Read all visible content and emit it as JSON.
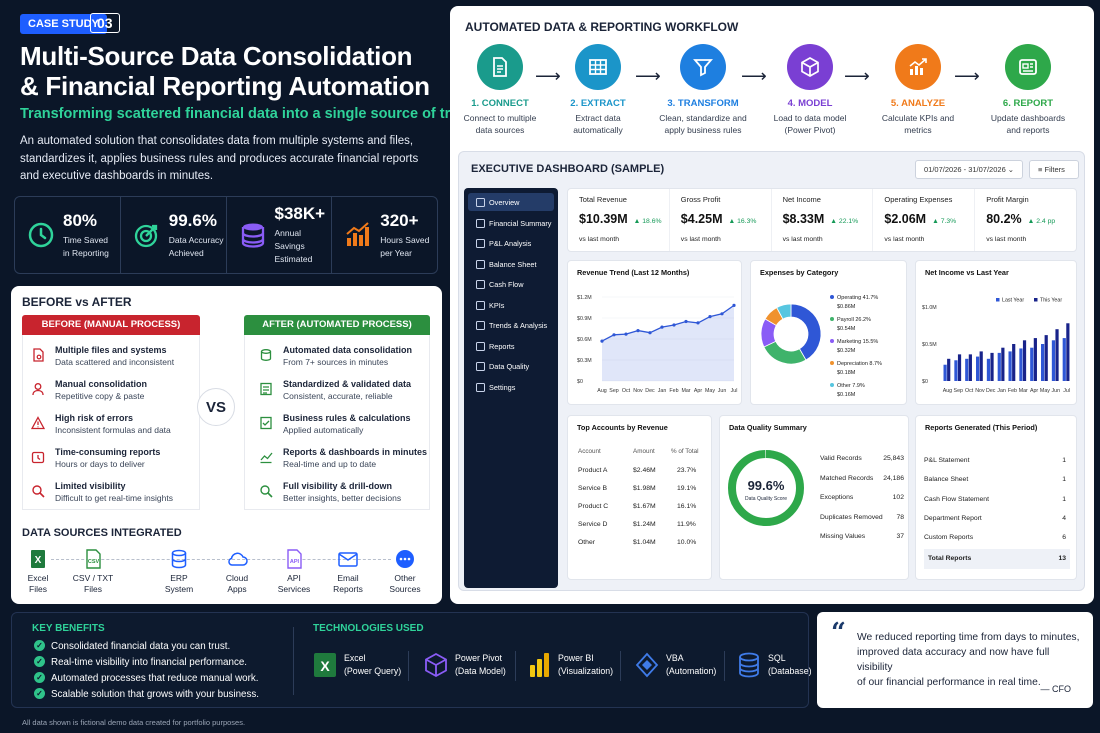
{
  "header": {
    "badge": "CASE STUDY",
    "number": "03",
    "title_line1": "Multi-Source Data Consolidation",
    "title_line2": "& Financial Reporting Automation",
    "subtitle": "Transforming scattered financial data into a single source of truth",
    "desc_line1": "An automated solution that consolidates data from multiple systems and files,",
    "desc_line2": "standardizes it, applies business rules and produces accurate financial reports",
    "desc_line3": "and executive dashboards in minutes."
  },
  "stats": [
    {
      "value": "80%",
      "l1": "Time Saved",
      "l2": "in Reporting",
      "icon": "clock-icon",
      "color": "#2fd39a"
    },
    {
      "value": "99.6%",
      "l1": "Data Accuracy",
      "l2": "Achieved",
      "icon": "target-icon",
      "color": "#2fd39a"
    },
    {
      "value": "$38K+",
      "l1": "Annual Savings",
      "l2": "Estimated",
      "icon": "database-icon",
      "color": "#8a5cf6"
    },
    {
      "value": "320+",
      "l1": "Hours Saved",
      "l2": "per Year",
      "icon": "bar-chart-icon",
      "color": "#f07a1a"
    }
  ],
  "before_after": {
    "heading": "BEFORE vs AFTER",
    "before_label": "BEFORE (MANUAL PROCESS)",
    "after_label": "AFTER (AUTOMATED PROCESS)",
    "vs": "VS",
    "before": [
      {
        "t": "Multiple files and systems",
        "s": "Data scattered and inconsistent"
      },
      {
        "t": "Manual consolidation",
        "s": "Repetitive copy & paste"
      },
      {
        "t": "High risk of errors",
        "s": "Inconsistent formulas and data"
      },
      {
        "t": "Time-consuming reports",
        "s": "Hours or days to deliver"
      },
      {
        "t": "Limited visibility",
        "s": "Difficult to get real-time insights"
      }
    ],
    "after": [
      {
        "t": "Automated data consolidation",
        "s": "From 7+ sources in minutes"
      },
      {
        "t": "Standardized & validated data",
        "s": "Consistent, accurate, reliable"
      },
      {
        "t": "Business rules & calculations",
        "s": "Applied automatically"
      },
      {
        "t": "Reports & dashboards in minutes",
        "s": "Real-time and up to date"
      },
      {
        "t": "Full visibility & drill-down",
        "s": "Better insights, better decisions"
      }
    ],
    "sources_heading": "DATA SOURCES INTEGRATED",
    "sources": [
      {
        "l1": "Excel",
        "l2": "Files"
      },
      {
        "l1": "CSV / TXT",
        "l2": "Files"
      },
      {
        "l1": "ERP",
        "l2": "System"
      },
      {
        "l1": "Cloud",
        "l2": "Apps"
      },
      {
        "l1": "API",
        "l2": "Services"
      },
      {
        "l1": "Email",
        "l2": "Reports"
      },
      {
        "l1": "Other",
        "l2": "Sources"
      }
    ]
  },
  "workflow": {
    "heading": "AUTOMATED DATA & REPORTING WORKFLOW",
    "steps": [
      {
        "n": "1. CONNECT",
        "d1": "Connect to multiple",
        "d2": "data sources",
        "color": "#1a9b8c"
      },
      {
        "n": "2. EXTRACT",
        "d1": "Extract data",
        "d2": "automatically",
        "color": "#1b95c9"
      },
      {
        "n": "3. TRANSFORM",
        "d1": "Clean, standardize and",
        "d2": "apply business rules",
        "color": "#1e7fe0"
      },
      {
        "n": "4. MODEL",
        "d1": "Load to data model",
        "d2": "(Power Pivot)",
        "color": "#7a3fd3"
      },
      {
        "n": "5. ANALYZE",
        "d1": "Calculate KPIs and",
        "d2": "metrics",
        "color": "#f07a1a"
      },
      {
        "n": "6. REPORT",
        "d1": "Update dashboards",
        "d2": "and reports",
        "color": "#2ea84a"
      }
    ]
  },
  "dashboard": {
    "title": "EXECUTIVE DASHBOARD (SAMPLE)",
    "date_range": "01/07/2026 - 31/07/2026",
    "filters": "Filters",
    "nav": [
      "Overview",
      "Financial Summary",
      "P&L Analysis",
      "Balance Sheet",
      "Cash Flow",
      "KPIs",
      "Trends & Analysis",
      "Reports",
      "Data Quality",
      "Settings"
    ],
    "kpis": [
      {
        "label": "Total Revenue",
        "value": "$10.39M",
        "delta": "▲ 18.6%",
        "sub": "vs last month"
      },
      {
        "label": "Gross Profit",
        "value": "$4.25M",
        "delta": "▲ 16.3%",
        "sub": "vs last month"
      },
      {
        "label": "Net Income",
        "value": "$8.33M",
        "delta": "▲ 22.1%",
        "sub": "vs last month"
      },
      {
        "label": "Operating Expenses",
        "value": "$2.06M",
        "delta": "▲ 7.3%",
        "sub": "vs last month"
      },
      {
        "label": "Profit Margin",
        "value": "80.2%",
        "delta": "▲ 2.4 pp",
        "sub": "vs last month"
      }
    ],
    "revenue_title": "Revenue Trend (Last 12 Months)",
    "expenses_title": "Expenses by Category",
    "netincome_title": "Net Income vs Last Year",
    "top_accounts_title": "Top Accounts by Revenue",
    "dq_title": "Data Quality Summary",
    "reports_title": "Reports Generated (This Period)",
    "top_accounts": {
      "headers": [
        "Account",
        "Amount",
        "% of Total"
      ],
      "rows": [
        [
          "Product A",
          "$2.46M",
          "23.7%"
        ],
        [
          "Service B",
          "$1.98M",
          "19.1%"
        ],
        [
          "Product C",
          "$1.67M",
          "16.1%"
        ],
        [
          "Service D",
          "$1.24M",
          "11.9%"
        ],
        [
          "Other",
          "$1.04M",
          "10.0%"
        ]
      ]
    },
    "data_quality": {
      "score": "99.6%",
      "score_label": "Data Quality Score",
      "rows": [
        [
          "Valid Records",
          "25,843"
        ],
        [
          "Matched Records",
          "24,186"
        ],
        [
          "Exceptions",
          "102"
        ],
        [
          "Duplicates Removed",
          "78"
        ],
        [
          "Missing Values",
          "37"
        ]
      ]
    },
    "reports": {
      "rows": [
        [
          "P&L Statement",
          "1"
        ],
        [
          "Balance Sheet",
          "1"
        ],
        [
          "Cash Flow Statement",
          "1"
        ],
        [
          "Department Report",
          "4"
        ],
        [
          "Custom Reports",
          "6"
        ]
      ],
      "total": [
        "Total Reports",
        "13"
      ]
    }
  },
  "chart_data": [
    {
      "type": "area",
      "title": "Revenue Trend (Last 12 Months)",
      "categories": [
        "Aug",
        "Sep",
        "Oct",
        "Nov",
        "Dec",
        "Jan",
        "Feb",
        "Mar",
        "Apr",
        "May",
        "Jun",
        "Jul"
      ],
      "values": [
        0.57,
        0.66,
        0.67,
        0.72,
        0.69,
        0.77,
        0.8,
        0.85,
        0.83,
        0.92,
        0.96,
        1.08
      ],
      "yticks": [
        "$1.2M",
        "$0.9M",
        "$0.6M",
        "$0.3M",
        "$0"
      ],
      "ylim": [
        0,
        1.2
      ],
      "color": "#2f57d6"
    },
    {
      "type": "pie",
      "title": "Expenses by Category",
      "labels": [
        "Operating",
        "Payroll",
        "Marketing",
        "Depreciation",
        "Other"
      ],
      "percents": [
        "41.7%",
        "26.2%",
        "15.5%",
        "8.7%",
        "7.9%"
      ],
      "amounts": [
        "$0.86M",
        "$0.54M",
        "$0.32M",
        "$0.18M",
        "$0.16M"
      ],
      "values": [
        41.7,
        26.2,
        15.5,
        8.7,
        7.9
      ],
      "colors": [
        "#2f57d6",
        "#3fb36b",
        "#8a5cf6",
        "#f0922e",
        "#57c6e0"
      ]
    },
    {
      "type": "bar",
      "title": "Net Income vs Last Year",
      "categories": [
        "Aug",
        "Sep",
        "Oct",
        "Nov",
        "Dec",
        "Jan",
        "Feb",
        "Mar",
        "Apr",
        "May",
        "Jun",
        "Jul"
      ],
      "yticks": [
        "$1.0M",
        "$0.5M",
        "$0"
      ],
      "ylim": [
        0,
        1.0
      ],
      "series": [
        {
          "name": "Last Year",
          "values": [
            0.22,
            0.28,
            0.3,
            0.33,
            0.3,
            0.38,
            0.4,
            0.44,
            0.45,
            0.5,
            0.55,
            0.58
          ],
          "color": "#2f57d6"
        },
        {
          "name": "This Year",
          "values": [
            0.3,
            0.36,
            0.36,
            0.4,
            0.38,
            0.45,
            0.5,
            0.55,
            0.58,
            0.62,
            0.7,
            0.78
          ],
          "color": "#18238a"
        }
      ]
    }
  ],
  "bottom": {
    "benefits_heading": "KEY BENEFITS",
    "benefits": [
      "Consolidated financial data you can trust.",
      "Real-time visibility into financial performance.",
      "Automated processes that reduce manual work.",
      "Scalable solution that grows with your business."
    ],
    "tech_heading": "TECHNOLOGIES USED",
    "tech": [
      {
        "l1": "Excel",
        "l2": "(Power Query)"
      },
      {
        "l1": "Power Pivot",
        "l2": "(Data Model)"
      },
      {
        "l1": "Power BI",
        "l2": "(Visualization)"
      },
      {
        "l1": "VBA",
        "l2": "(Automation)"
      },
      {
        "l1": "SQL",
        "l2": "(Database)"
      }
    ],
    "quote_l1": "We reduced reporting time from days to minutes,",
    "quote_l2": "improved data accuracy and now have full visibility",
    "quote_l3": "of our financial performance in real time.",
    "quote_author": "— CFO"
  },
  "footer": "All data shown is fictional demo data created for portfolio purposes."
}
